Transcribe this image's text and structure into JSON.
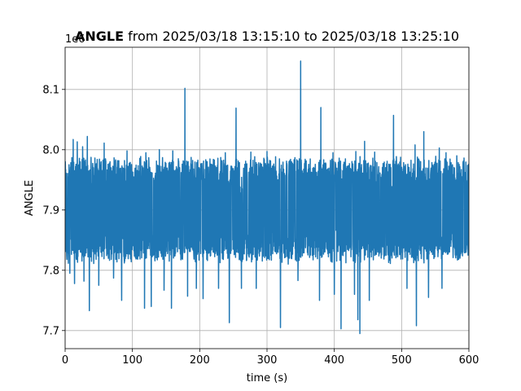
{
  "chart_data": {
    "type": "line",
    "title_bold": "ANGLE",
    "title_rest": " from 2025/03/18 13:15:10 to 2025/03/18 13:25:10",
    "xlabel": "time (s)",
    "ylabel": "ANGLE",
    "offset_text": "1e6",
    "xlim": [
      0,
      600
    ],
    "ylim": [
      7.67,
      8.17
    ],
    "xticks": [
      0,
      100,
      200,
      300,
      400,
      500,
      600
    ],
    "xtick_labels": [
      "0",
      "100",
      "200",
      "300",
      "400",
      "500",
      "600"
    ],
    "yticks": [
      7.7,
      7.8,
      7.9,
      8.0,
      8.1
    ],
    "ytick_labels": [
      "7.7",
      "7.8",
      "7.9",
      "8.0",
      "8.1"
    ],
    "grid": true,
    "line_color": "#1f77b4",
    "series_envelope": {
      "step_s": 1,
      "typical_high": 7.975,
      "typical_low": 7.825,
      "spikes_high": [
        [
          12,
          8.017
        ],
        [
          18,
          8.013
        ],
        [
          26,
          8.005
        ],
        [
          33,
          8.022
        ],
        [
          58,
          8.011
        ],
        [
          92,
          7.998
        ],
        [
          120,
          7.995
        ],
        [
          140,
          8.0
        ],
        [
          160,
          7.998
        ],
        [
          178,
          8.102
        ],
        [
          238,
          7.995
        ],
        [
          254,
          8.069
        ],
        [
          276,
          7.996
        ],
        [
          300,
          7.997
        ],
        [
          350,
          8.147
        ],
        [
          380,
          8.07
        ],
        [
          398,
          7.995
        ],
        [
          432,
          7.997
        ],
        [
          445,
          8.014
        ],
        [
          460,
          7.996
        ],
        [
          488,
          8.057
        ],
        [
          520,
          8.008
        ],
        [
          533,
          8.03
        ],
        [
          556,
          8.003
        ],
        [
          566,
          7.995
        ],
        [
          582,
          7.99
        ]
      ],
      "spikes_low": [
        [
          7,
          7.795
        ],
        [
          14,
          7.778
        ],
        [
          28,
          7.782
        ],
        [
          36,
          7.733
        ],
        [
          50,
          7.775
        ],
        [
          72,
          7.787
        ],
        [
          84,
          7.75
        ],
        [
          118,
          7.737
        ],
        [
          128,
          7.74
        ],
        [
          147,
          7.767
        ],
        [
          158,
          7.737
        ],
        [
          182,
          7.757
        ],
        [
          195,
          7.77
        ],
        [
          205,
          7.753
        ],
        [
          228,
          7.77
        ],
        [
          244,
          7.713
        ],
        [
          262,
          7.77
        ],
        [
          284,
          7.77
        ],
        [
          300,
          7.78
        ],
        [
          320,
          7.705
        ],
        [
          346,
          7.783
        ],
        [
          378,
          7.75
        ],
        [
          400,
          7.76
        ],
        [
          410,
          7.703
        ],
        [
          430,
          7.76
        ],
        [
          435,
          7.718
        ],
        [
          438,
          7.695
        ],
        [
          452,
          7.75
        ],
        [
          488,
          7.77
        ],
        [
          508,
          7.77
        ],
        [
          522,
          7.708
        ],
        [
          540,
          7.755
        ],
        [
          560,
          7.77
        ]
      ]
    }
  }
}
